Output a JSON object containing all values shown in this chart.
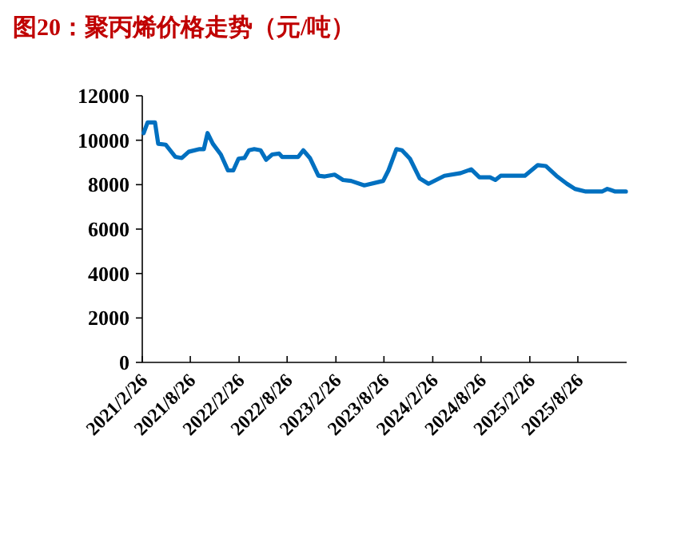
{
  "chart_data": {
    "type": "line",
    "title": "图20：聚丙烯价格走势（元/吨）",
    "x": [
      "2021-03-03",
      "2021-03-18",
      "2021-04-15",
      "2021-04-27",
      "2021-05-25",
      "2021-07-01",
      "2021-07-25",
      "2021-08-20",
      "2021-09-30",
      "2021-10-16",
      "2021-10-30",
      "2021-11-19",
      "2021-12-19",
      "2022-01-15",
      "2022-02-04",
      "2022-02-24",
      "2022-03-18",
      "2022-04-04",
      "2022-04-24",
      "2022-05-18",
      "2022-06-08",
      "2022-07-01",
      "2022-07-27",
      "2022-08-07",
      "2022-10-07",
      "2022-10-26",
      "2022-11-20",
      "2022-12-22",
      "2023-01-15",
      "2023-02-21",
      "2023-03-25",
      "2023-04-24",
      "2023-06-13",
      "2023-08-23",
      "2023-09-12",
      "2023-10-12",
      "2023-11-02",
      "2023-12-02",
      "2024-01-08",
      "2024-02-10",
      "2024-04-10",
      "2024-06-10",
      "2024-07-20",
      "2024-08-20",
      "2024-09-29",
      "2024-10-19",
      "2024-11-08",
      "2025-02-07",
      "2025-03-28",
      "2025-04-27",
      "2025-06-06",
      "2025-07-16",
      "2025-08-15",
      "2025-09-25",
      "2025-11-25",
      "2025-12-15",
      "2026-01-14",
      "2026-02-23"
    ],
    "series": [
      {
        "color": "#0070c0",
        "values": [
          10320,
          10800,
          10800,
          9840,
          9800,
          9250,
          9200,
          9480,
          9600,
          9600,
          10320,
          9840,
          9360,
          8640,
          8640,
          9170,
          9200,
          9550,
          9600,
          9550,
          9120,
          9360,
          9400,
          9250,
          9250,
          9550,
          9200,
          8400,
          8370,
          8450,
          8210,
          8170,
          7970,
          8170,
          8640,
          9600,
          9550,
          9170,
          8280,
          8040,
          8400,
          8520,
          8690,
          8330,
          8330,
          8210,
          8400,
          8400,
          8880,
          8840,
          8400,
          8040,
          7810,
          7690,
          7690,
          7810,
          7690,
          7690
        ]
      }
    ],
    "xlim": [
      "2021-02-26",
      "2026-02-26"
    ],
    "xticks": [
      {
        "value": "2021-02-26",
        "label": "2021/2/26"
      },
      {
        "value": "2021-08-26",
        "label": "2021/8/26"
      },
      {
        "value": "2022-02-26",
        "label": "2022/2/26"
      },
      {
        "value": "2022-08-26",
        "label": "2022/8/26"
      },
      {
        "value": "2023-02-26",
        "label": "2023/2/26"
      },
      {
        "value": "2023-08-26",
        "label": "2023/8/26"
      },
      {
        "value": "2024-02-26",
        "label": "2024/2/26"
      },
      {
        "value": "2024-08-26",
        "label": "2024/8/26"
      },
      {
        "value": "2025-02-26",
        "label": "2025/2/26"
      },
      {
        "value": "2025-08-26",
        "label": "2025/8/26"
      }
    ],
    "ylim": [
      0,
      12000
    ],
    "yticks": [
      0,
      2000,
      4000,
      6000,
      8000,
      10000,
      12000
    ],
    "grid": false
  }
}
